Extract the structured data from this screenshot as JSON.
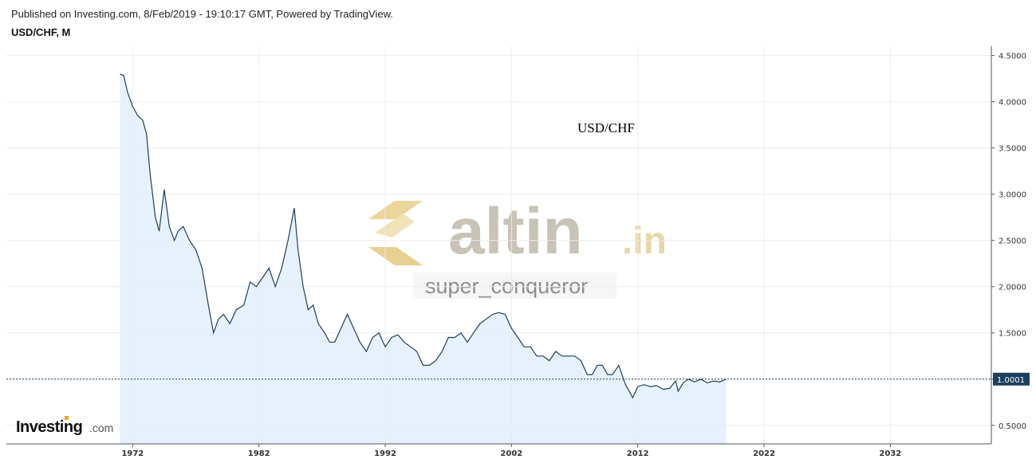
{
  "header": {
    "published": "Published on Investing.com, 8/Feb/2019 - 19:10:17 GMT, Powered by TradingView.",
    "symbol": "USD/CHF, M"
  },
  "annotation": "USD/CHF",
  "watermark": {
    "brand": "altin",
    "suffix": ".in",
    "user": "super_conqueror"
  },
  "logo": {
    "main": "Investing",
    "suffix": ".com"
  },
  "colors": {
    "line": "#1c3f5e",
    "area": "#e3effb",
    "price_tag": "#1c3f5e",
    "grid": "#ececec",
    "watermark_gold": "#e8cf92"
  },
  "chart_data": {
    "type": "area",
    "title": "USD/CHF",
    "xlabel": "",
    "ylabel": "",
    "xlim": [
      1962,
      2040
    ],
    "ylim": [
      0.3,
      4.6
    ],
    "x_ticks": [
      1972,
      1982,
      1992,
      2002,
      2012,
      2022,
      2032
    ],
    "y_ticks": [
      0.5,
      1.0,
      1.5,
      2.0,
      2.5,
      3.0,
      3.5,
      4.0,
      4.5
    ],
    "y_tick_labels": [
      "0.5000",
      "1.0000",
      "1.5000",
      "2.0000",
      "2.5000",
      "3.0000",
      "3.5000",
      "4.0000",
      "4.5000"
    ],
    "current_price": 1.0001,
    "current_price_label": "1.0001",
    "grid": true,
    "series": [
      {
        "x": [
          1971.0,
          1971.3,
          1971.6,
          1972.0,
          1972.4,
          1972.8,
          1973.1,
          1973.4,
          1973.8,
          1974.1,
          1974.5,
          1974.9,
          1975.3,
          1975.6,
          1976.0,
          1976.5,
          1977.0,
          1977.5,
          1978.0,
          1978.4,
          1978.8,
          1979.2,
          1979.7,
          1980.2,
          1980.8,
          1981.3,
          1981.8,
          1982.3,
          1982.8,
          1983.3,
          1983.8,
          1984.3,
          1984.8,
          1985.1,
          1985.5,
          1985.9,
          1986.3,
          1986.7,
          1987.2,
          1987.6,
          1988.0,
          1988.5,
          1989.0,
          1989.5,
          1990.0,
          1990.5,
          1991.0,
          1991.5,
          1992.0,
          1992.5,
          1993.0,
          1993.5,
          1994.0,
          1994.5,
          1995.0,
          1995.5,
          1996.0,
          1996.5,
          1997.0,
          1997.5,
          1998.0,
          1998.5,
          1999.0,
          1999.5,
          2000.0,
          2000.5,
          2001.0,
          2001.5,
          2002.0,
          2002.5,
          2003.0,
          2003.5,
          2004.0,
          2004.5,
          2005.0,
          2005.5,
          2006.0,
          2006.5,
          2007.0,
          2007.5,
          2008.0,
          2008.4,
          2008.8,
          2009.2,
          2009.6,
          2010.0,
          2010.5,
          2011.0,
          2011.4,
          2011.6,
          2012.0,
          2012.5,
          2013.0,
          2013.5,
          2014.0,
          2014.5,
          2015.0,
          2015.2,
          2015.6,
          2016.0,
          2016.5,
          2017.0,
          2017.5,
          2018.0,
          2018.5,
          2019.0
        ],
        "y": [
          4.3,
          4.28,
          4.1,
          3.95,
          3.85,
          3.8,
          3.65,
          3.2,
          2.75,
          2.6,
          3.05,
          2.65,
          2.5,
          2.6,
          2.65,
          2.5,
          2.4,
          2.2,
          1.8,
          1.5,
          1.65,
          1.7,
          1.6,
          1.75,
          1.8,
          2.05,
          2.0,
          2.1,
          2.2,
          2.0,
          2.2,
          2.5,
          2.85,
          2.4,
          2.0,
          1.75,
          1.8,
          1.6,
          1.5,
          1.4,
          1.4,
          1.55,
          1.7,
          1.55,
          1.4,
          1.3,
          1.45,
          1.5,
          1.35,
          1.45,
          1.48,
          1.4,
          1.35,
          1.3,
          1.15,
          1.15,
          1.2,
          1.3,
          1.45,
          1.45,
          1.5,
          1.4,
          1.5,
          1.6,
          1.65,
          1.7,
          1.72,
          1.7,
          1.55,
          1.45,
          1.35,
          1.35,
          1.25,
          1.25,
          1.2,
          1.3,
          1.25,
          1.25,
          1.25,
          1.2,
          1.05,
          1.05,
          1.15,
          1.15,
          1.05,
          1.05,
          1.15,
          0.95,
          0.85,
          0.8,
          0.92,
          0.94,
          0.92,
          0.93,
          0.89,
          0.9,
          0.98,
          0.87,
          0.96,
          1.0,
          0.97,
          1.0,
          0.96,
          0.98,
          0.97,
          1.0
        ]
      }
    ]
  }
}
